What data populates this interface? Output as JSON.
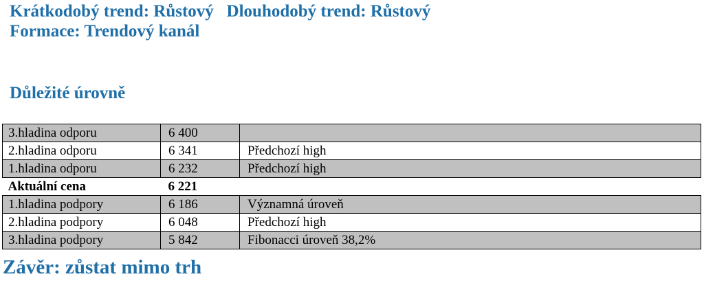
{
  "header": {
    "short_trend": "Krátkodobý trend: Růstový",
    "long_trend": "Dlouhodobý trend: Růstový",
    "formation": "Formace: Trendový kanál"
  },
  "section": {
    "title": "Důležité úrovně"
  },
  "levels": {
    "rows": [
      {
        "label": "3.hladina odporu",
        "value": "6 400",
        "note": "",
        "shade": "gray"
      },
      {
        "label": "2.hladina odporu",
        "value": "6 341",
        "note": "Předchozí high",
        "shade": "white"
      },
      {
        "label": "1.hladina odporu",
        "value": "6 232",
        "note": "Předchozí high",
        "shade": "gray"
      },
      {
        "label": "Aktuální cena",
        "value": "6 221",
        "note": "",
        "shade": "white"
      },
      {
        "label": "1.hladina podpory",
        "value": "6 186",
        "note": "Významná úroveň",
        "shade": "gray"
      },
      {
        "label": "2.hladina podpory",
        "value": "6 048",
        "note": "Předchozí high",
        "shade": "white"
      },
      {
        "label": "3.hladina podpory",
        "value": "5 842",
        "note": "Fibonacci úroveň 38,2%",
        "shade": "gray"
      }
    ]
  },
  "conclusion": {
    "text": "Závěr: zůstat mimo trh"
  },
  "colors": {
    "heading": "#1f6fa8",
    "shaded_row": "#c0c0c0"
  }
}
